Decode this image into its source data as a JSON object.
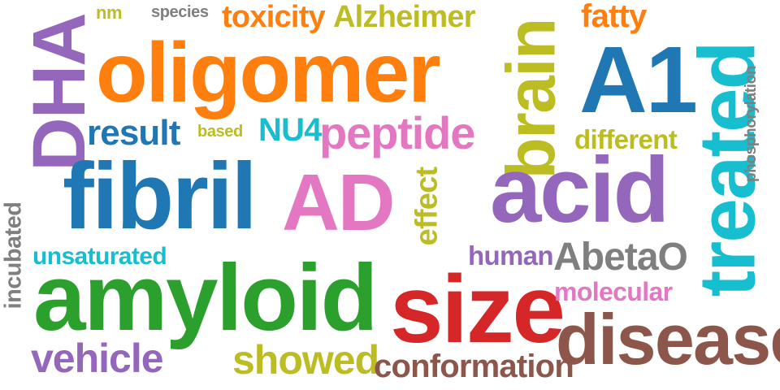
{
  "words": [
    {
      "text": "DHA",
      "color": "#9467bd"
    },
    {
      "text": "nm",
      "color": "#bcbd22"
    },
    {
      "text": "species",
      "color": "#7f7f7f"
    },
    {
      "text": "toxicity",
      "color": "#ff7f0e"
    },
    {
      "text": "Alzheimer",
      "color": "#bcbd22"
    },
    {
      "text": "brain",
      "color": "#bcbd22"
    },
    {
      "text": "fatty",
      "color": "#ff7f0e"
    },
    {
      "text": "treated",
      "color": "#17becf"
    },
    {
      "text": "phosphorylation",
      "color": "#7f7f7f"
    },
    {
      "text": "oligomer",
      "color": "#ff7f0e"
    },
    {
      "text": "A1",
      "color": "#1f77b4"
    },
    {
      "text": "result",
      "color": "#1f77b4"
    },
    {
      "text": "based",
      "color": "#bcbd22"
    },
    {
      "text": "NU4",
      "color": "#17becf"
    },
    {
      "text": "peptide",
      "color": "#e377c2"
    },
    {
      "text": "different",
      "color": "#bcbd22"
    },
    {
      "text": "fibril",
      "color": "#1f77b4"
    },
    {
      "text": "AD",
      "color": "#e377c2"
    },
    {
      "text": "effect",
      "color": "#bcbd22"
    },
    {
      "text": "acid",
      "color": "#9467bd"
    },
    {
      "text": "incubated",
      "color": "#7f7f7f"
    },
    {
      "text": "unsaturated",
      "color": "#17becf"
    },
    {
      "text": "human",
      "color": "#9467bd"
    },
    {
      "text": "AbetaO",
      "color": "#7f7f7f"
    },
    {
      "text": "amyloid",
      "color": "#2ca02c"
    },
    {
      "text": "size",
      "color": "#d62728"
    },
    {
      "text": "molecular",
      "color": "#e377c2"
    },
    {
      "text": "disease",
      "color": "#8c564b"
    },
    {
      "text": "vehicle",
      "color": "#9467bd"
    },
    {
      "text": "showed",
      "color": "#bcbd22"
    },
    {
      "text": "conformation",
      "color": "#8c564b"
    }
  ]
}
